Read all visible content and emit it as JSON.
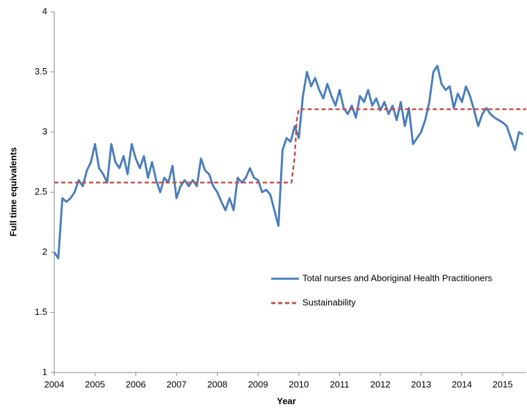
{
  "chart_data": {
    "type": "line",
    "xlabel": "Year",
    "ylabel": "Full time equivalents",
    "xlim": [
      2004,
      2015.58
    ],
    "xticks": [
      2004,
      2005,
      2006,
      2007,
      2008,
      2009,
      2010,
      2011,
      2012,
      2013,
      2014,
      2015
    ],
    "ylim": [
      1,
      4
    ],
    "yticks": [
      1,
      1.5,
      2,
      2.5,
      3,
      3.5,
      4
    ],
    "legend": "right",
    "series": [
      {
        "name": "Total nurses and Aboriginal Health Practitioners",
        "color": "#4a7ebb",
        "dash": false,
        "x": [
          2004.0,
          2004.1,
          2004.2,
          2004.3,
          2004.4,
          2004.5,
          2004.6,
          2004.7,
          2004.8,
          2004.9,
          2005.0,
          2005.1,
          2005.2,
          2005.3,
          2005.4,
          2005.5,
          2005.6,
          2005.7,
          2005.8,
          2005.9,
          2006.0,
          2006.1,
          2006.2,
          2006.3,
          2006.4,
          2006.5,
          2006.6,
          2006.7,
          2006.8,
          2006.9,
          2007.0,
          2007.1,
          2007.2,
          2007.3,
          2007.4,
          2007.5,
          2007.6,
          2007.7,
          2007.8,
          2007.9,
          2008.0,
          2008.1,
          2008.2,
          2008.3,
          2008.4,
          2008.5,
          2008.6,
          2008.7,
          2008.8,
          2008.9,
          2009.0,
          2009.1,
          2009.2,
          2009.3,
          2009.4,
          2009.5,
          2009.6,
          2009.7,
          2009.8,
          2009.9,
          2010.0,
          2010.1,
          2010.2,
          2010.3,
          2010.4,
          2010.5,
          2010.6,
          2010.7,
          2010.8,
          2010.9,
          2011.0,
          2011.1,
          2011.2,
          2011.3,
          2011.4,
          2011.5,
          2011.6,
          2011.7,
          2011.8,
          2011.9,
          2012.0,
          2012.1,
          2012.2,
          2012.3,
          2012.4,
          2012.5,
          2012.6,
          2012.7,
          2012.8,
          2012.9,
          2013.0,
          2013.1,
          2013.2,
          2013.3,
          2013.4,
          2013.5,
          2013.6,
          2013.7,
          2013.8,
          2013.9,
          2014.0,
          2014.1,
          2014.2,
          2014.3,
          2014.4,
          2014.5,
          2014.6,
          2014.7,
          2014.8,
          2014.9,
          2015.0,
          2015.1,
          2015.2,
          2015.3,
          2015.4,
          2015.5
        ],
        "values": [
          2.0,
          1.95,
          2.45,
          2.42,
          2.45,
          2.5,
          2.6,
          2.55,
          2.68,
          2.75,
          2.9,
          2.7,
          2.65,
          2.58,
          2.9,
          2.75,
          2.7,
          2.8,
          2.65,
          2.9,
          2.78,
          2.7,
          2.8,
          2.62,
          2.75,
          2.6,
          2.5,
          2.62,
          2.58,
          2.72,
          2.45,
          2.55,
          2.6,
          2.55,
          2.6,
          2.55,
          2.78,
          2.68,
          2.65,
          2.55,
          2.5,
          2.42,
          2.35,
          2.45,
          2.35,
          2.62,
          2.58,
          2.62,
          2.7,
          2.62,
          2.6,
          2.5,
          2.52,
          2.48,
          2.35,
          2.22,
          2.85,
          2.95,
          2.92,
          3.05,
          2.95,
          3.3,
          3.5,
          3.38,
          3.45,
          3.35,
          3.28,
          3.4,
          3.3,
          3.22,
          3.35,
          3.2,
          3.15,
          3.22,
          3.12,
          3.3,
          3.25,
          3.35,
          3.22,
          3.28,
          3.18,
          3.25,
          3.15,
          3.22,
          3.1,
          3.25,
          3.05,
          3.2,
          2.9,
          2.95,
          3.0,
          3.1,
          3.25,
          3.5,
          3.55,
          3.4,
          3.35,
          3.38,
          3.2,
          3.32,
          3.25,
          3.38,
          3.3,
          3.18,
          3.05,
          3.15,
          3.2,
          3.15,
          3.12,
          3.1,
          3.08,
          3.05,
          2.95,
          2.85,
          3.0,
          2.98
        ]
      },
      {
        "name": "Sustainability",
        "color": "#c0504d",
        "dash": true,
        "x": [
          2004.0,
          2009.82,
          2009.9,
          2009.95,
          2010.0,
          2015.58
        ],
        "values": [
          2.58,
          2.58,
          2.8,
          3.1,
          3.19,
          3.19
        ]
      }
    ]
  }
}
